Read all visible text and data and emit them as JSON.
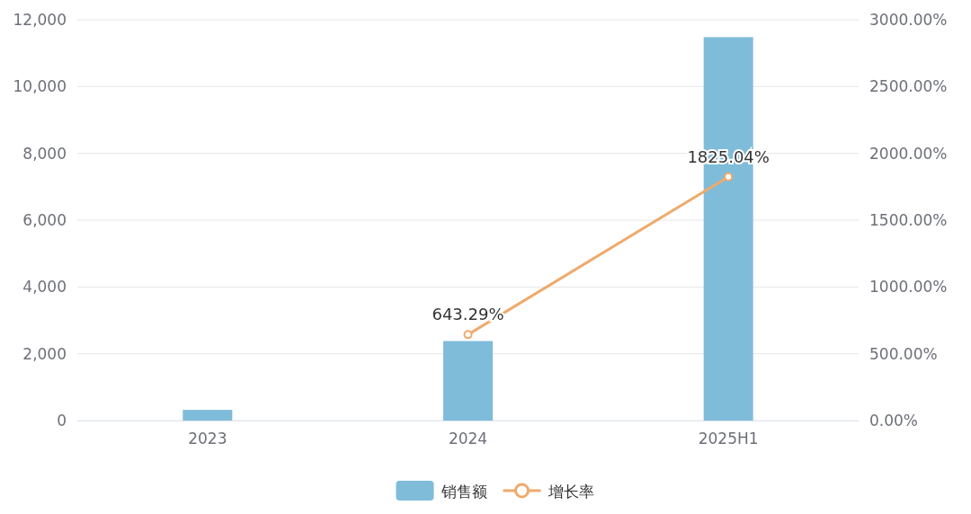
{
  "chart_data": {
    "type": "bar",
    "categories": [
      "2023",
      "2024",
      "2025H1"
    ],
    "series": [
      {
        "name": "销售额",
        "color": "#7fbcd9",
        "values": [
          320,
          2380,
          11480
        ]
      },
      {
        "name": "增长率",
        "type": "line",
        "axis": "y2",
        "color": "#eeaa6c",
        "values": [
          null,
          643.29,
          1825.04
        ],
        "value_labels": [
          null,
          "643.29%",
          "1825.04%"
        ],
        "marker": "circle"
      }
    ],
    "ylim": [
      0,
      12000
    ],
    "yticks": [
      0,
      {
        "value": 2000,
        "label": "2,000"
      },
      {
        "value": 4000,
        "label": "4,000"
      },
      {
        "value": 6000,
        "label": "6,000"
      },
      {
        "value": 8000,
        "label": "8,000"
      },
      {
        "value": 10000,
        "label": "10,000"
      },
      {
        "value": 12000,
        "label": "12,000"
      }
    ],
    "y2lim": [
      0,
      3000
    ],
    "y2ticks": [
      {
        "value": 0,
        "label": "0.00%"
      },
      {
        "value": 500,
        "label": "500.00%"
      },
      {
        "value": 1000,
        "label": "1000.00%"
      },
      {
        "value": 1500,
        "label": "1500.00%"
      },
      {
        "value": 2000,
        "label": "2000.00%"
      },
      {
        "value": 2500,
        "label": "2500.00%"
      },
      {
        "value": 3000,
        "label": "3000.00%"
      }
    ],
    "grid": "y",
    "legend": "bottom"
  }
}
